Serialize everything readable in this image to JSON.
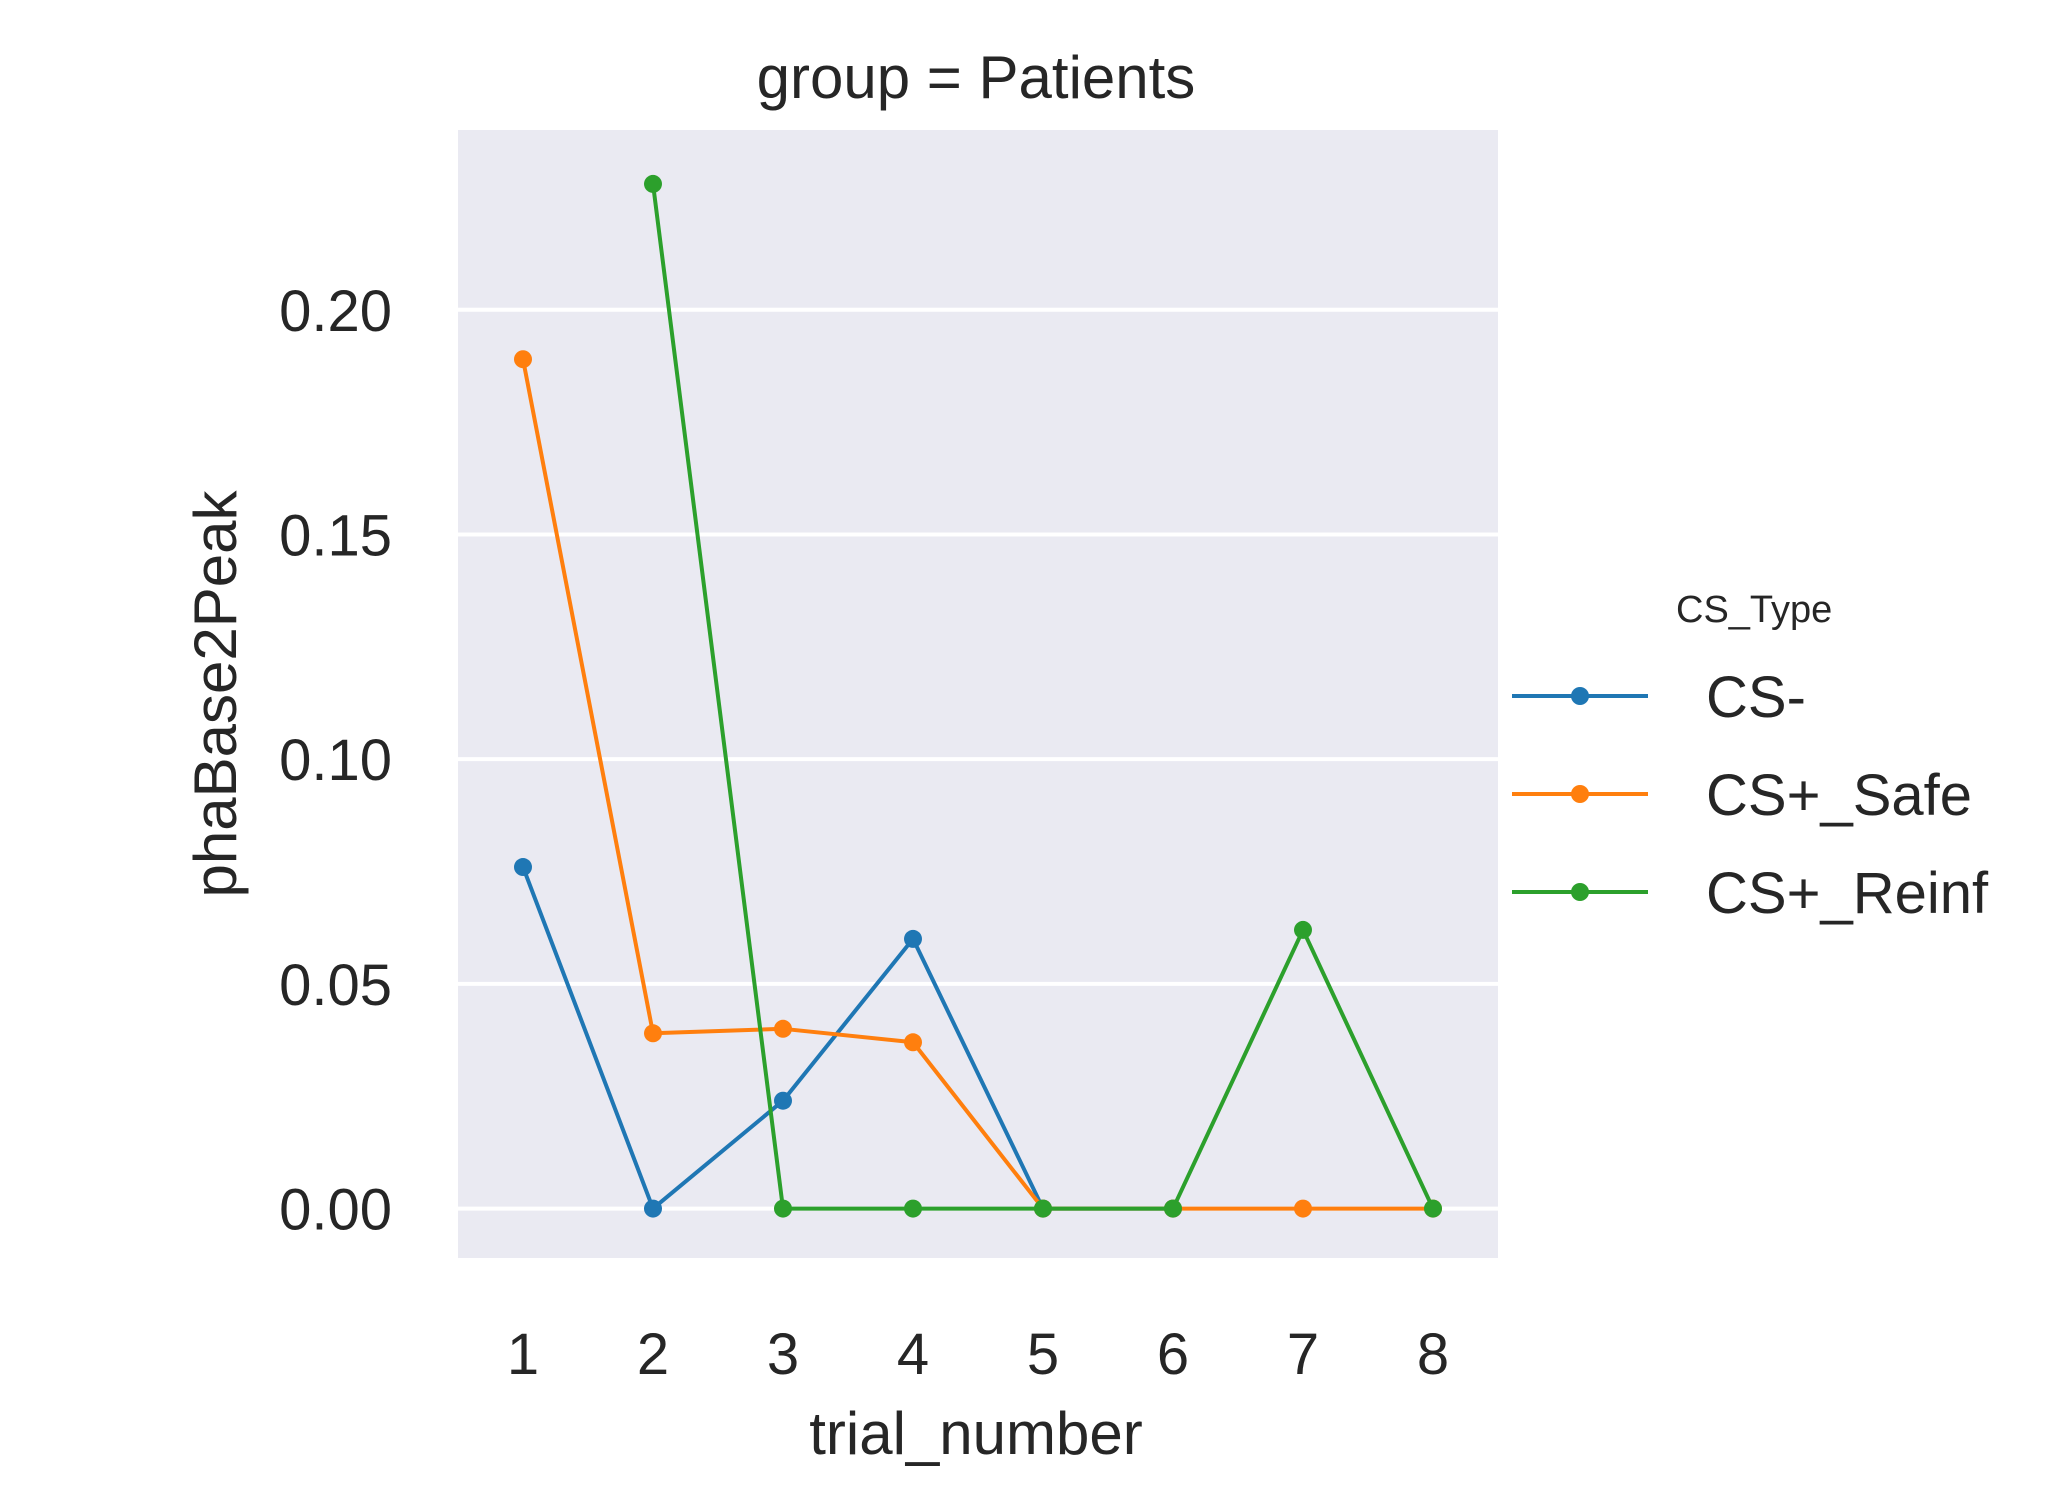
{
  "chart_data": {
    "type": "line",
    "title": "group = Patients",
    "xlabel": "trial_number",
    "ylabel": "phaBase2Peak",
    "x": [
      1,
      2,
      3,
      4,
      5,
      6,
      7,
      8
    ],
    "ylim": [
      -0.011,
      0.24
    ],
    "yticks": [
      0.0,
      0.05,
      0.1,
      0.15,
      0.2
    ],
    "ytick_labels": [
      "0.00",
      "0.05",
      "0.10",
      "0.15",
      "0.20"
    ],
    "xtick_labels": [
      "1",
      "2",
      "3",
      "4",
      "5",
      "6",
      "7",
      "8"
    ],
    "grid": true,
    "legend": {
      "title": "CS_Type",
      "position": "right"
    },
    "series": [
      {
        "name": "CS-",
        "color": "#1f77b4",
        "values": [
          0.076,
          0.0,
          0.024,
          0.06,
          0.0,
          0.0,
          null,
          null
        ]
      },
      {
        "name": "CS+_Safe",
        "color": "#ff7f0e",
        "values": [
          0.189,
          0.039,
          0.04,
          0.037,
          0.0,
          0.0,
          0.0,
          0.0
        ]
      },
      {
        "name": "CS+_Reinf",
        "color": "#2ca02c",
        "values": [
          null,
          0.228,
          0.0,
          0.0,
          0.0,
          0.0,
          0.062,
          0.0
        ]
      }
    ]
  }
}
